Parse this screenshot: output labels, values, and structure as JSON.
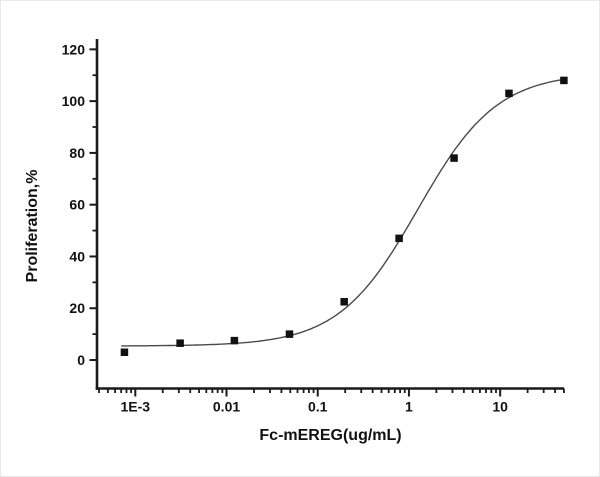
{
  "chart_data": {
    "type": "scatter",
    "title": "",
    "xlabel": "Fc-mEREG(ug/mL)",
    "ylabel": "Proliferation,%",
    "x_scale": "log",
    "grid": false,
    "legend": "none",
    "x": [
      0.00076,
      0.0031,
      0.0122,
      0.049,
      0.195,
      0.78,
      3.125,
      12.5,
      50
    ],
    "y": [
      3,
      6.5,
      7.5,
      10,
      22.5,
      47,
      78,
      103,
      108
    ],
    "x_ticks": [
      0.001,
      0.01,
      0.1,
      1,
      10
    ],
    "x_tick_labels": [
      "1E-3",
      "0.01",
      "0.1",
      "1",
      "10"
    ],
    "y_ticks": [
      0,
      20,
      40,
      60,
      80,
      100,
      120
    ],
    "y_minor_ticks": [
      10,
      30,
      50,
      70,
      90,
      110
    ],
    "ylim": [
      -11,
      124
    ],
    "xlim_log": [
      -3.42,
      1.7
    ],
    "fit": {
      "model": "4PL",
      "bottom": 5.4,
      "top": 111,
      "ec50": 1.25,
      "hill": 1.0
    },
    "marker": {
      "shape": "square",
      "size": 7.5,
      "color": "#111111"
    },
    "line_color": "#4a4a4a",
    "axis_color": "#1a1a1a",
    "background_color": "#ffffff"
  }
}
